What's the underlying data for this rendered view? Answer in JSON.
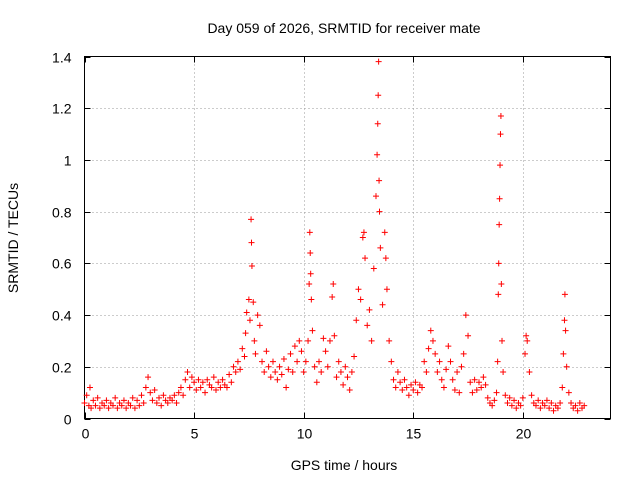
{
  "chart_data": {
    "type": "scatter",
    "title": "Day 059 of 2026, SRMTID for receiver mate",
    "xlabel": "GPS time / hours",
    "ylabel": "SRMTID / TECUs",
    "xlim": [
      0,
      24
    ],
    "ylim": [
      0,
      1.4
    ],
    "xticks": [
      0,
      5,
      10,
      15,
      20
    ],
    "yticks": [
      0,
      0.2,
      0.4,
      0.6,
      0.8,
      1,
      1.2,
      1.4
    ],
    "xtick_labels": [
      "0",
      "5",
      "10",
      "15",
      "20"
    ],
    "ytick_labels": [
      "0",
      "0.2",
      "0.4",
      "0.6",
      "0.8",
      "1",
      "1.2",
      "1.4"
    ],
    "grid": true,
    "marker": "plus",
    "color": "#ff0000",
    "series": [
      {
        "name": "SRMTID",
        "points": [
          [
            0.0,
            0.06
          ],
          [
            0.1,
            0.09
          ],
          [
            0.2,
            0.05
          ],
          [
            0.25,
            0.12
          ],
          [
            0.3,
            0.04
          ],
          [
            0.4,
            0.07
          ],
          [
            0.5,
            0.05
          ],
          [
            0.6,
            0.08
          ],
          [
            0.7,
            0.04
          ],
          [
            0.8,
            0.06
          ],
          [
            0.9,
            0.05
          ],
          [
            1.0,
            0.07
          ],
          [
            1.1,
            0.04
          ],
          [
            1.2,
            0.06
          ],
          [
            1.3,
            0.05
          ],
          [
            1.4,
            0.08
          ],
          [
            1.5,
            0.04
          ],
          [
            1.6,
            0.06
          ],
          [
            1.7,
            0.05
          ],
          [
            1.8,
            0.07
          ],
          [
            1.9,
            0.04
          ],
          [
            2.0,
            0.06
          ],
          [
            2.1,
            0.05
          ],
          [
            2.2,
            0.08
          ],
          [
            2.3,
            0.04
          ],
          [
            2.4,
            0.07
          ],
          [
            2.5,
            0.05
          ],
          [
            2.6,
            0.09
          ],
          [
            2.7,
            0.06
          ],
          [
            2.8,
            0.12
          ],
          [
            2.9,
            0.16
          ],
          [
            3.0,
            0.1
          ],
          [
            3.1,
            0.07
          ],
          [
            3.2,
            0.11
          ],
          [
            3.3,
            0.06
          ],
          [
            3.4,
            0.08
          ],
          [
            3.5,
            0.05
          ],
          [
            3.6,
            0.09
          ],
          [
            3.7,
            0.07
          ],
          [
            3.8,
            0.06
          ],
          [
            3.9,
            0.08
          ],
          [
            4.0,
            0.07
          ],
          [
            4.1,
            0.09
          ],
          [
            4.2,
            0.06
          ],
          [
            4.3,
            0.1
          ],
          [
            4.4,
            0.12
          ],
          [
            4.5,
            0.09
          ],
          [
            4.6,
            0.15
          ],
          [
            4.7,
            0.18
          ],
          [
            4.8,
            0.12
          ],
          [
            4.9,
            0.16
          ],
          [
            5.0,
            0.14
          ],
          [
            5.1,
            0.11
          ],
          [
            5.2,
            0.15
          ],
          [
            5.3,
            0.12
          ],
          [
            5.4,
            0.14
          ],
          [
            5.5,
            0.1
          ],
          [
            5.6,
            0.15
          ],
          [
            5.7,
            0.13
          ],
          [
            5.8,
            0.12
          ],
          [
            5.9,
            0.16
          ],
          [
            6.0,
            0.11
          ],
          [
            6.1,
            0.14
          ],
          [
            6.2,
            0.12
          ],
          [
            6.3,
            0.15
          ],
          [
            6.4,
            0.13
          ],
          [
            6.5,
            0.12
          ],
          [
            6.6,
            0.17
          ],
          [
            6.7,
            0.14
          ],
          [
            6.8,
            0.2
          ],
          [
            6.9,
            0.18
          ],
          [
            7.0,
            0.22
          ],
          [
            7.1,
            0.19
          ],
          [
            7.2,
            0.27
          ],
          [
            7.3,
            0.24
          ],
          [
            7.35,
            0.33
          ],
          [
            7.4,
            0.41
          ],
          [
            7.5,
            0.46
          ],
          [
            7.55,
            0.38
          ],
          [
            7.6,
            0.77
          ],
          [
            7.62,
            0.68
          ],
          [
            7.64,
            0.59
          ],
          [
            7.7,
            0.45
          ],
          [
            7.75,
            0.3
          ],
          [
            7.8,
            0.25
          ],
          [
            7.9,
            0.4
          ],
          [
            8.0,
            0.36
          ],
          [
            8.1,
            0.22
          ],
          [
            8.2,
            0.18
          ],
          [
            8.3,
            0.26
          ],
          [
            8.4,
            0.2
          ],
          [
            8.5,
            0.16
          ],
          [
            8.6,
            0.22
          ],
          [
            8.7,
            0.18
          ],
          [
            8.8,
            0.15
          ],
          [
            8.9,
            0.2
          ],
          [
            9.0,
            0.17
          ],
          [
            9.1,
            0.23
          ],
          [
            9.2,
            0.12
          ],
          [
            9.3,
            0.19
          ],
          [
            9.4,
            0.25
          ],
          [
            9.5,
            0.18
          ],
          [
            9.6,
            0.28
          ],
          [
            9.7,
            0.22
          ],
          [
            9.8,
            0.3
          ],
          [
            9.9,
            0.26
          ],
          [
            10.0,
            0.18
          ],
          [
            10.1,
            0.22
          ],
          [
            10.2,
            0.3
          ],
          [
            10.25,
            0.52
          ],
          [
            10.28,
            0.72
          ],
          [
            10.3,
            0.64
          ],
          [
            10.32,
            0.56
          ],
          [
            10.35,
            0.46
          ],
          [
            10.4,
            0.34
          ],
          [
            10.5,
            0.2
          ],
          [
            10.6,
            0.14
          ],
          [
            10.7,
            0.22
          ],
          [
            10.8,
            0.18
          ],
          [
            10.9,
            0.31
          ],
          [
            11.0,
            0.26
          ],
          [
            11.1,
            0.2
          ],
          [
            11.2,
            0.3
          ],
          [
            11.3,
            0.47
          ],
          [
            11.35,
            0.52
          ],
          [
            11.4,
            0.32
          ],
          [
            11.5,
            0.16
          ],
          [
            11.6,
            0.22
          ],
          [
            11.7,
            0.18
          ],
          [
            11.8,
            0.13
          ],
          [
            11.9,
            0.2
          ],
          [
            12.0,
            0.16
          ],
          [
            12.1,
            0.11
          ],
          [
            12.2,
            0.18
          ],
          [
            12.3,
            0.24
          ],
          [
            12.4,
            0.38
          ],
          [
            12.5,
            0.5
          ],
          [
            12.6,
            0.46
          ],
          [
            12.7,
            0.7
          ],
          [
            12.75,
            0.72
          ],
          [
            12.8,
            0.62
          ],
          [
            12.9,
            0.36
          ],
          [
            13.0,
            0.42
          ],
          [
            13.1,
            0.3
          ],
          [
            13.2,
            0.58
          ],
          [
            13.3,
            0.86
          ],
          [
            13.35,
            1.02
          ],
          [
            13.38,
            1.14
          ],
          [
            13.4,
            1.25
          ],
          [
            13.42,
            1.38
          ],
          [
            13.44,
            0.92
          ],
          [
            13.46,
            0.8
          ],
          [
            13.5,
            0.66
          ],
          [
            13.6,
            0.44
          ],
          [
            13.7,
            0.72
          ],
          [
            13.75,
            0.62
          ],
          [
            13.8,
            0.5
          ],
          [
            13.9,
            0.3
          ],
          [
            14.0,
            0.22
          ],
          [
            14.1,
            0.15
          ],
          [
            14.2,
            0.12
          ],
          [
            14.3,
            0.18
          ],
          [
            14.4,
            0.14
          ],
          [
            14.5,
            0.11
          ],
          [
            14.6,
            0.15
          ],
          [
            14.7,
            0.12
          ],
          [
            14.8,
            0.09
          ],
          [
            14.9,
            0.13
          ],
          [
            15.0,
            0.11
          ],
          [
            15.1,
            0.14
          ],
          [
            15.2,
            0.1
          ],
          [
            15.3,
            0.13
          ],
          [
            15.4,
            0.12
          ],
          [
            15.5,
            0.22
          ],
          [
            15.6,
            0.18
          ],
          [
            15.7,
            0.27
          ],
          [
            15.8,
            0.34
          ],
          [
            15.9,
            0.3
          ],
          [
            16.0,
            0.25
          ],
          [
            16.1,
            0.18
          ],
          [
            16.2,
            0.22
          ],
          [
            16.3,
            0.15
          ],
          [
            16.4,
            0.12
          ],
          [
            16.5,
            0.19
          ],
          [
            16.6,
            0.28
          ],
          [
            16.7,
            0.22
          ],
          [
            16.8,
            0.15
          ],
          [
            16.9,
            0.11
          ],
          [
            17.0,
            0.18
          ],
          [
            17.1,
            0.1
          ],
          [
            17.2,
            0.2
          ],
          [
            17.3,
            0.25
          ],
          [
            17.4,
            0.4
          ],
          [
            17.5,
            0.32
          ],
          [
            17.6,
            0.14
          ],
          [
            17.7,
            0.1
          ],
          [
            17.8,
            0.15
          ],
          [
            17.9,
            0.11
          ],
          [
            18.0,
            0.14
          ],
          [
            18.1,
            0.12
          ],
          [
            18.2,
            0.16
          ],
          [
            18.3,
            0.13
          ],
          [
            18.4,
            0.08
          ],
          [
            18.5,
            0.06
          ],
          [
            18.6,
            0.05
          ],
          [
            18.7,
            0.07
          ],
          [
            18.8,
            0.1
          ],
          [
            18.85,
            0.22
          ],
          [
            18.88,
            0.48
          ],
          [
            18.9,
            0.6
          ],
          [
            18.92,
            0.75
          ],
          [
            18.94,
            0.85
          ],
          [
            18.96,
            0.98
          ],
          [
            18.98,
            1.1
          ],
          [
            19.0,
            1.17
          ],
          [
            19.02,
            0.52
          ],
          [
            19.05,
            0.3
          ],
          [
            19.1,
            0.18
          ],
          [
            19.2,
            0.09
          ],
          [
            19.3,
            0.06
          ],
          [
            19.4,
            0.08
          ],
          [
            19.5,
            0.05
          ],
          [
            19.6,
            0.07
          ],
          [
            19.7,
            0.04
          ],
          [
            19.8,
            0.06
          ],
          [
            19.9,
            0.05
          ],
          [
            20.0,
            0.08
          ],
          [
            20.1,
            0.25
          ],
          [
            20.15,
            0.32
          ],
          [
            20.2,
            0.3
          ],
          [
            20.3,
            0.18
          ],
          [
            20.4,
            0.09
          ],
          [
            20.5,
            0.06
          ],
          [
            20.6,
            0.05
          ],
          [
            20.7,
            0.07
          ],
          [
            20.8,
            0.04
          ],
          [
            20.9,
            0.06
          ],
          [
            21.0,
            0.05
          ],
          [
            21.1,
            0.07
          ],
          [
            21.2,
            0.04
          ],
          [
            21.3,
            0.06
          ],
          [
            21.4,
            0.03
          ],
          [
            21.5,
            0.05
          ],
          [
            21.6,
            0.04
          ],
          [
            21.7,
            0.06
          ],
          [
            21.8,
            0.12
          ],
          [
            21.85,
            0.25
          ],
          [
            21.9,
            0.38
          ],
          [
            21.92,
            0.48
          ],
          [
            21.95,
            0.34
          ],
          [
            22.0,
            0.2
          ],
          [
            22.1,
            0.1
          ],
          [
            22.2,
            0.06
          ],
          [
            22.3,
            0.04
          ],
          [
            22.4,
            0.05
          ],
          [
            22.5,
            0.03
          ],
          [
            22.6,
            0.06
          ],
          [
            22.7,
            0.04
          ],
          [
            22.8,
            0.05
          ]
        ]
      }
    ]
  }
}
